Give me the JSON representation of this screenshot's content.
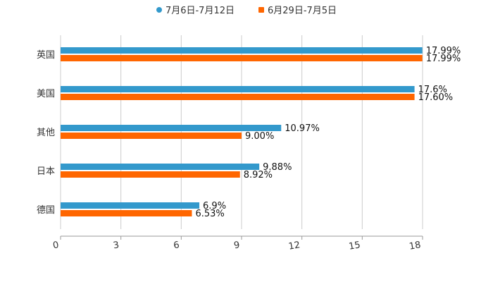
{
  "chart_data": {
    "type": "bar",
    "orientation": "horizontal",
    "categories": [
      "英国",
      "美国",
      "其他",
      "日本",
      "德国"
    ],
    "series": [
      {
        "name": "7月6日-7月12日",
        "color": "#3399cc",
        "values": [
          17.99,
          17.6,
          10.97,
          9.88,
          6.9
        ],
        "labels": [
          "17.99%",
          "17.6%",
          "10.97%",
          "9.88%",
          "6.9%"
        ]
      },
      {
        "name": "6月29日-7月5日",
        "color": "#ff6600",
        "values": [
          17.99,
          17.6,
          9.0,
          8.92,
          6.53
        ],
        "labels": [
          "17.99%",
          "17.60%",
          "9.00%",
          "8.92%",
          "6.53%"
        ]
      }
    ],
    "xlim": [
      0,
      18
    ],
    "xticks": [
      "0",
      "3",
      "6",
      "9",
      "12",
      "15",
      "18"
    ],
    "grid": true,
    "legend": "top-center"
  }
}
